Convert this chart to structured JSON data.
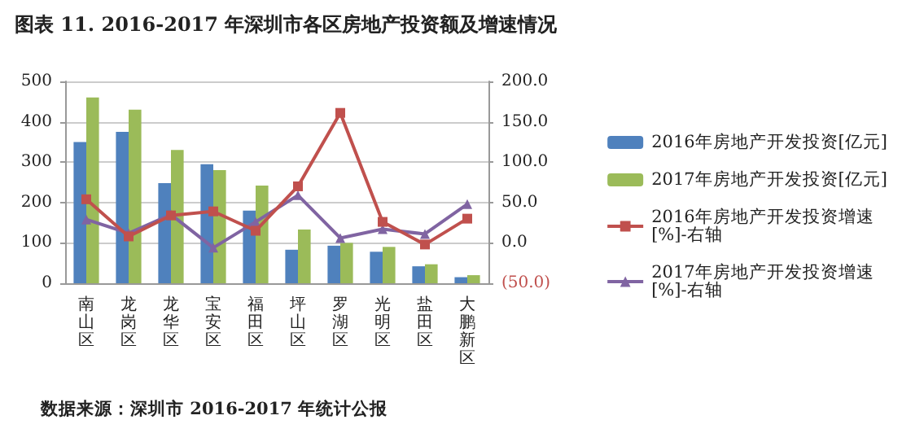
{
  "chart_data": {
    "type": "bar",
    "title": "图表 11. 2016-2017 年深圳市各区房地产投资额及增速情况",
    "categories": [
      "南山区",
      "龙岗区",
      "龙华区",
      "宝安区",
      "福田区",
      "坪山区",
      "罗湖区",
      "光明区",
      "盐田区",
      "大鹏新区"
    ],
    "series": [
      {
        "name": "2016年房地产开发投资[亿元]",
        "color": "#4f81bd",
        "values": [
          350,
          375,
          248,
          295,
          180,
          83,
          93,
          78,
          42,
          15
        ]
      },
      {
        "name": "2017年房地产开发投资[亿元]",
        "color": "#9bbb59",
        "values": [
          460,
          430,
          330,
          280,
          242,
          133,
          100,
          90,
          47,
          20
        ]
      },
      {
        "name": "2016年房地产开发投资增速[%]-右轴",
        "type": "line",
        "axis": "y2",
        "marker": "square",
        "color": "#c0504d",
        "values": [
          54,
          8,
          34,
          39,
          15,
          70,
          161,
          26,
          -2,
          30
        ]
      },
      {
        "name": "2017年房地产开发投资增速[%]-右轴",
        "type": "line",
        "axis": "y2",
        "marker": "triangle",
        "color": "#8064a2",
        "values": [
          29,
          12,
          35,
          -6,
          26,
          59,
          6,
          17,
          11,
          48
        ]
      }
    ],
    "ylim": [
      0,
      500
    ],
    "yticks": [
      0,
      100,
      200,
      300,
      400,
      500
    ],
    "y2lim": [
      -50,
      200
    ],
    "y2ticks": [
      {
        "value": -50,
        "label": "(50.0)"
      },
      {
        "value": 0,
        "label": "0.0"
      },
      {
        "value": 50,
        "label": "50.0"
      },
      {
        "value": 100,
        "label": "100.0"
      },
      {
        "value": 150,
        "label": "150.0"
      },
      {
        "value": 200,
        "label": "200.0"
      }
    ],
    "grid": "y",
    "legend": "right",
    "line_style": "solid",
    "annotations": [
      "数据来源：深圳市 2016-2017 年统计公报"
    ]
  }
}
